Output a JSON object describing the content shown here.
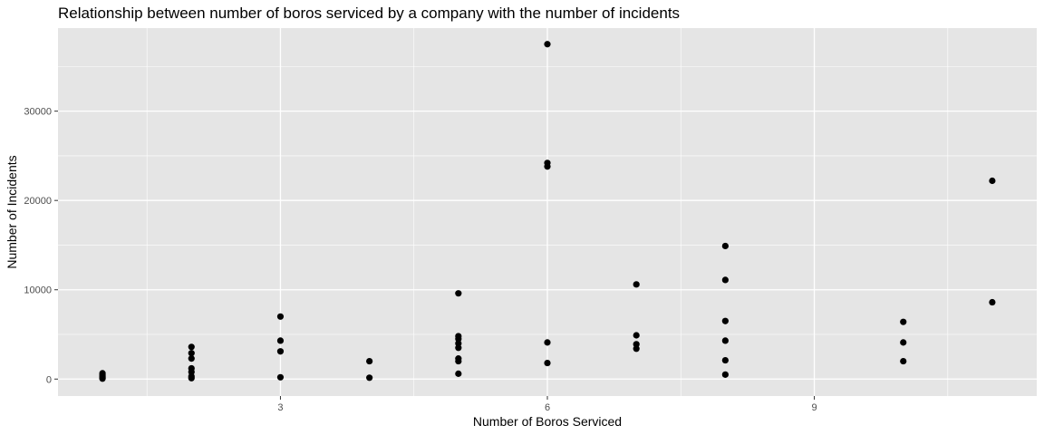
{
  "chart_data": {
    "type": "scatter",
    "title": "Relationship between number of boros serviced by a company with the number of incidents",
    "xlabel": "Number of Boros Serviced",
    "ylabel": "Number of Incidents",
    "xlim": [
      0.5,
      11.5
    ],
    "ylim": [
      -1900,
      39300
    ],
    "x_ticks": [
      3,
      6,
      9
    ],
    "y_ticks": [
      0,
      10000,
      20000,
      30000
    ],
    "x_tick_labels": [
      "3",
      "6",
      "9"
    ],
    "y_tick_labels": [
      "0",
      "10000",
      "20000",
      "30000"
    ],
    "grid": true,
    "background": "#e5e5e5",
    "grid_color": "#ffffff",
    "point_color": "#000000",
    "points": [
      {
        "x": 1,
        "y": 650
      },
      {
        "x": 1,
        "y": 450
      },
      {
        "x": 1,
        "y": 300
      },
      {
        "x": 1,
        "y": 150
      },
      {
        "x": 1,
        "y": 50
      },
      {
        "x": 2,
        "y": 3600
      },
      {
        "x": 2,
        "y": 2900
      },
      {
        "x": 2,
        "y": 2300
      },
      {
        "x": 2,
        "y": 1200
      },
      {
        "x": 2,
        "y": 800
      },
      {
        "x": 2,
        "y": 300
      },
      {
        "x": 2,
        "y": 100
      },
      {
        "x": 3,
        "y": 7000
      },
      {
        "x": 3,
        "y": 4300
      },
      {
        "x": 3,
        "y": 3100
      },
      {
        "x": 3,
        "y": 200
      },
      {
        "x": 4,
        "y": 2000
      },
      {
        "x": 4,
        "y": 150
      },
      {
        "x": 5,
        "y": 9600
      },
      {
        "x": 5,
        "y": 4800
      },
      {
        "x": 5,
        "y": 4500
      },
      {
        "x": 5,
        "y": 4000
      },
      {
        "x": 5,
        "y": 3500
      },
      {
        "x": 5,
        "y": 2300
      },
      {
        "x": 5,
        "y": 2000
      },
      {
        "x": 5,
        "y": 600
      },
      {
        "x": 6,
        "y": 37500
      },
      {
        "x": 6,
        "y": 24200
      },
      {
        "x": 6,
        "y": 23800
      },
      {
        "x": 6,
        "y": 4100
      },
      {
        "x": 6,
        "y": 1800
      },
      {
        "x": 7,
        "y": 10600
      },
      {
        "x": 7,
        "y": 4900
      },
      {
        "x": 7,
        "y": 3900
      },
      {
        "x": 7,
        "y": 3400
      },
      {
        "x": 8,
        "y": 14900
      },
      {
        "x": 8,
        "y": 11100
      },
      {
        "x": 8,
        "y": 6500
      },
      {
        "x": 8,
        "y": 4300
      },
      {
        "x": 8,
        "y": 2100
      },
      {
        "x": 8,
        "y": 500
      },
      {
        "x": 10,
        "y": 6400
      },
      {
        "x": 10,
        "y": 4100
      },
      {
        "x": 10,
        "y": 2000
      },
      {
        "x": 11,
        "y": 22200
      },
      {
        "x": 11,
        "y": 8600
      }
    ]
  }
}
